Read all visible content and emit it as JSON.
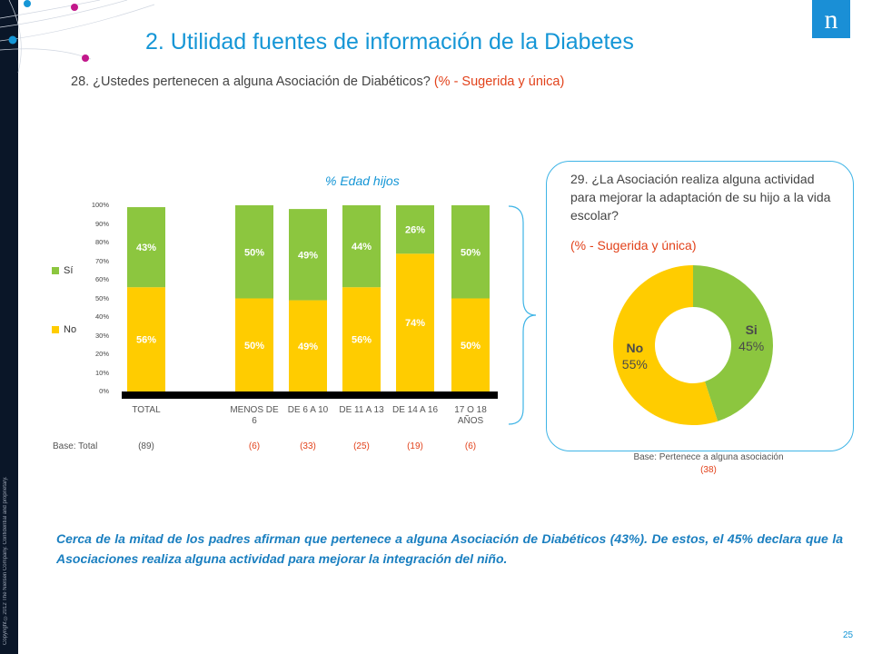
{
  "title": "2. Utilidad fuentes de información de la Diabetes",
  "question_28": {
    "text": "28. ¿Ustedes pertenecen a alguna Asociación de Diabéticos?",
    "qualifier": "(% - Sugerida y única)"
  },
  "subtitle_chart": "% Edad hijos",
  "legend": [
    {
      "label": "Sí",
      "color": "#8cc63f"
    },
    {
      "label": "No",
      "color": "#ffcc00"
    }
  ],
  "base_label": "Base: Total",
  "chart_data": [
    {
      "type": "bar",
      "stacked": true,
      "categories": [
        "TOTAL",
        "MENOS DE 6",
        "DE 6 A 10",
        "DE 11 A 13",
        "DE 14 A 16",
        "17 O 18 AÑOS"
      ],
      "series": [
        {
          "name": "No",
          "values": [
            56,
            50,
            49,
            56,
            74,
            50
          ],
          "color": "#ffcc00"
        },
        {
          "name": "Sí",
          "values": [
            43,
            50,
            49,
            44,
            26,
            50
          ],
          "color": "#8cc63f"
        }
      ],
      "yticks": [
        "0%",
        "10%",
        "20%",
        "30%",
        "40%",
        "50%",
        "60%",
        "70%",
        "80%",
        "90%",
        "100%"
      ],
      "ylim": [
        0,
        100
      ],
      "legend_position": "left",
      "bases": [
        "(89)",
        "(6)",
        "(33)",
        "(25)",
        "(19)",
        "(6)"
      ]
    },
    {
      "type": "pie",
      "donut": true,
      "slices": [
        {
          "label": "Sí",
          "value": 45,
          "color": "#8cc63f"
        },
        {
          "label": "No",
          "value": 55,
          "color": "#ffcc00"
        }
      ]
    }
  ],
  "question_29": {
    "text": "29. ¿La Asociación realiza alguna actividad para mejorar la adaptación de su hijo a la vida escolar?",
    "qualifier": "(% - Sugerida y única)",
    "base_text": "Base: Pertenece a alguna asociación",
    "base_n": "(38)"
  },
  "conclusion": "Cerca de la mitad de los padres afirman que pertenece a alguna Asociación de Diabéticos (43%). De estos, el 45% declara que la Asociaciones realiza alguna actividad para mejorar la integración del niño.",
  "page_number": "25",
  "logo_letter": "n",
  "copyright": "Copyright ©2012 The Nielsen Company. Confidential and proprietary."
}
